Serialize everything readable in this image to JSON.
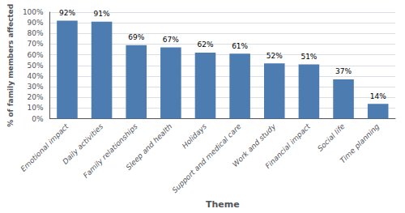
{
  "chart_data": {
    "type": "bar",
    "xlabel": "Theme",
    "ylabel": "% of family members affected",
    "categories": [
      "Emotional impact",
      "Daily activities",
      "Family relationships",
      "Sleep and health",
      "Holidays",
      "Support and medical care",
      "Work and study",
      "Financial impact",
      "Social life",
      "Time planning"
    ],
    "values": [
      92,
      91,
      69,
      67,
      62,
      61,
      52,
      51,
      37,
      14
    ],
    "value_labels": [
      "92%",
      "91%",
      "69%",
      "67%",
      "62%",
      "61%",
      "52%",
      "51%",
      "37%",
      "14%"
    ],
    "data_labels": true,
    "color": "#4d7db0",
    "ylim": [
      0,
      100
    ],
    "yticks": [
      {
        "value": 0,
        "label": "0%"
      },
      {
        "value": 10,
        "label": "10%"
      },
      {
        "value": 20,
        "label": "20%"
      },
      {
        "value": 30,
        "label": "30%"
      },
      {
        "value": 40,
        "label": "40%"
      },
      {
        "value": 50,
        "label": "50%"
      },
      {
        "value": 60,
        "label": "60%"
      },
      {
        "value": 70,
        "label": "70%"
      },
      {
        "value": 80,
        "label": "80%"
      },
      {
        "value": 90,
        "label": "90%"
      },
      {
        "value": 100,
        "label": "100%"
      }
    ],
    "grid": true
  }
}
